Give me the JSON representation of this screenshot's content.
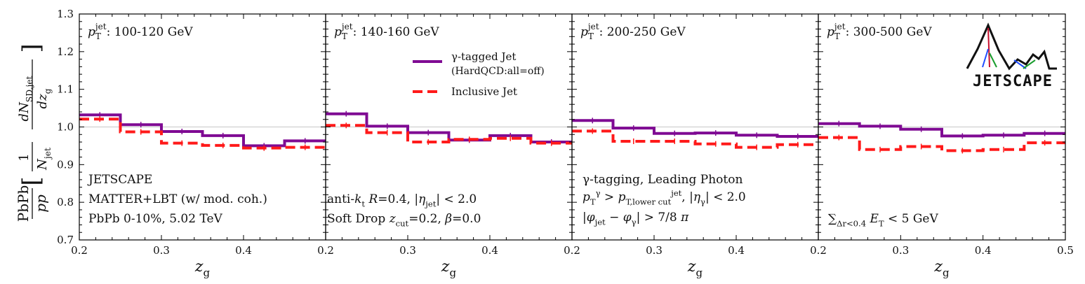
{
  "chart_data": {
    "type": "line",
    "subtype": "step-histogram-panels",
    "ylabel": {
      "lhs": "PbPb",
      "lhs_den": "pp",
      "frac_num": "1",
      "frac_den": "N_jet",
      "deriv_num": "dN_SD,jet",
      "deriv_den": "dz_g"
    },
    "xlabel": "z_g",
    "ylim": [
      0.7,
      1.3
    ],
    "yticks": [
      0.7,
      0.8,
      0.9,
      1.0,
      1.1,
      1.2,
      1.3
    ],
    "ytick_labels": [
      "0.7",
      "0.8",
      "0.9",
      "1.0",
      "1.1",
      "1.2",
      "1.3"
    ],
    "reference_line": 1.0,
    "bin_edges": [
      0.2,
      0.25,
      0.3,
      0.35,
      0.4,
      0.45,
      0.5
    ],
    "legend": {
      "location": "panel 2, upper-right",
      "entries": [
        {
          "series": "gamma",
          "label_line1": "γ-tagged Jet",
          "label_line2": "(HardQCD:all=off)"
        },
        {
          "series": "incl",
          "label_line1": "Inclusive Jet"
        }
      ]
    },
    "series_style": {
      "gamma": {
        "color": "#7f0a93",
        "dash": "solid"
      },
      "incl": {
        "color": "#ff1a1a",
        "dash": "dashed"
      }
    },
    "logo_text": "JETSCAPE",
    "panels": [
      {
        "title": "p_T^jet: 100-120 GeV",
        "xticks": [
          0.2,
          0.3,
          0.4
        ],
        "xtick_labels": [
          "0.2",
          "0.3",
          "0.4"
        ],
        "series": [
          {
            "name": "gamma",
            "values": [
              1.032,
              1.006,
              0.988,
              0.977,
              0.95,
              0.963
            ]
          },
          {
            "name": "incl",
            "values": [
              1.021,
              0.987,
              0.957,
              0.951,
              0.944,
              0.946
            ]
          }
        ],
        "annotations": [
          "JETSCAPE",
          "MATTER+LBT (w/ mod. coh.)",
          "PbPb 0-10%, 5.02 TeV"
        ]
      },
      {
        "title": "p_T^jet: 140-160 GeV",
        "xticks": [
          0.2,
          0.3,
          0.4
        ],
        "xtick_labels": [
          "0.2",
          "0.3",
          "0.4"
        ],
        "series": [
          {
            "name": "gamma",
            "values": [
              1.035,
              1.002,
              0.985,
              0.965,
              0.977,
              0.96
            ]
          },
          {
            "name": "incl",
            "values": [
              1.004,
              0.985,
              0.96,
              0.967,
              0.97,
              0.957
            ]
          }
        ],
        "annotations": [
          "anti-k_t R=0.4, |η_jet| < 2.0",
          "Soft Drop z_cut=0.2, β=0.0"
        ]
      },
      {
        "title": "p_T^jet: 200-250 GeV",
        "xticks": [
          0.2,
          0.3,
          0.4
        ],
        "xtick_labels": [
          "0.2",
          "0.3",
          "0.4"
        ],
        "series": [
          {
            "name": "gamma",
            "values": [
              1.017,
              0.997,
              0.983,
              0.984,
              0.978,
              0.975
            ]
          },
          {
            "name": "incl",
            "values": [
              0.989,
              0.962,
              0.962,
              0.955,
              0.946,
              0.953
            ]
          }
        ],
        "annotations": [
          "γ-tagging, Leading Photon",
          "p_T^γ > p_T,lower cut^jet, |η_γ| < 2.0",
          "|φ_jet − φ_γ| > 7/8 π"
        ]
      },
      {
        "title": "p_T^jet: 300-500 GeV",
        "xticks": [
          0.2,
          0.3,
          0.4,
          0.5
        ],
        "xtick_labels": [
          "0.2",
          "0.3",
          "0.4",
          "0.5"
        ],
        "series": [
          {
            "name": "gamma",
            "values": [
              1.009,
              1.002,
              0.994,
              0.976,
              0.978,
              0.983
            ]
          },
          {
            "name": "incl",
            "values": [
              0.972,
              0.94,
              0.948,
              0.937,
              0.94,
              0.958
            ]
          }
        ],
        "annotations": [
          "∑_Δr<0.4 E_T < 5 GeV"
        ]
      }
    ]
  }
}
